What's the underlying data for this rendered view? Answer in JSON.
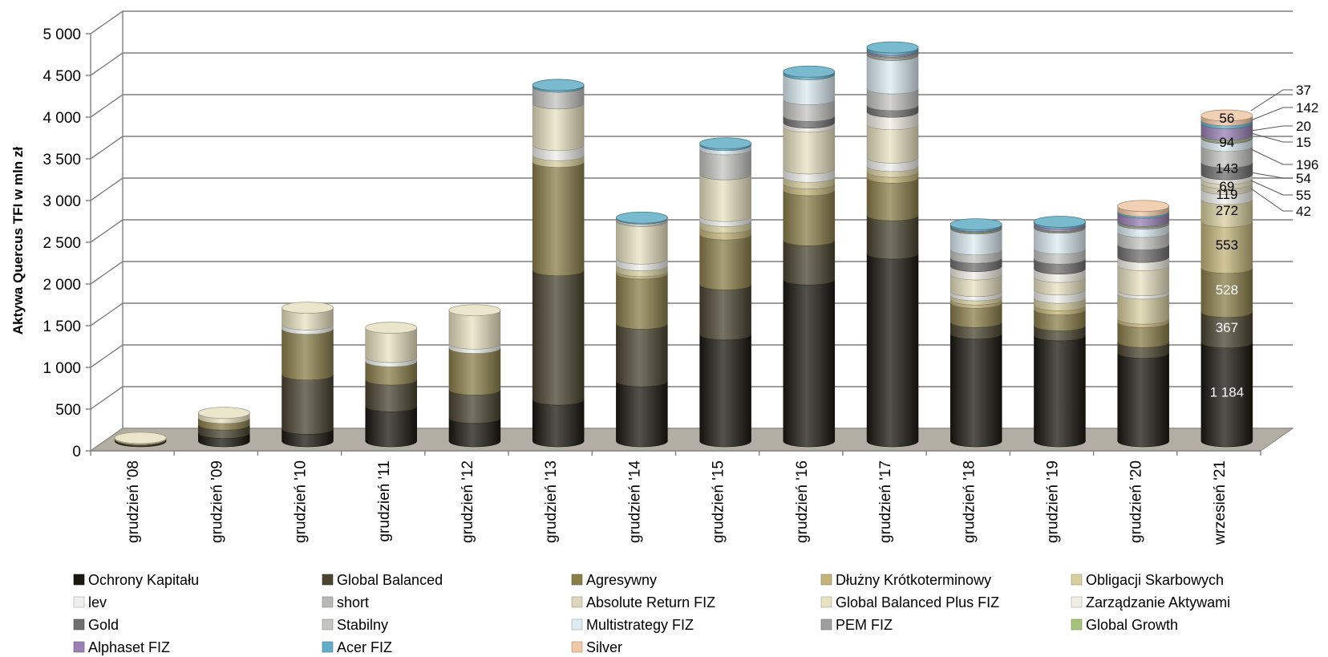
{
  "chart_data": {
    "type": "bar",
    "stacked": true,
    "three_d": true,
    "title": "",
    "xlabel": "",
    "ylabel": "Aktywa Quercus TFI w mln zł",
    "ylim": [
      0,
      5000
    ],
    "yticks": [
      0,
      500,
      1000,
      1500,
      2000,
      2500,
      3000,
      3500,
      4000,
      4500,
      5000
    ],
    "ytick_labels": [
      "0",
      "500",
      "1 000",
      "1 500",
      "2 000",
      "2 500",
      "3 000",
      "3 500",
      "4 000",
      "4 500",
      "5 000"
    ],
    "grid": true,
    "legend_position": "bottom",
    "categories": [
      "grudzień '08",
      "grudzień '09",
      "grudzień '10",
      "grudzień '11",
      "grudzień '12",
      "grudzień '13",
      "grudzień '14",
      "grudzień '15",
      "grudzień '16",
      "grudzień '17",
      "grudzień '18",
      "grudzień '19",
      "grudzień '20",
      "wrzesień '21"
    ],
    "series": [
      {
        "name": "Ochrony Kapitału",
        "color": "#1a1810",
        "values": [
          10,
          100,
          150,
          420,
          280,
          500,
          720,
          1280,
          1940,
          2250,
          1290,
          1270,
          1060,
          1184
        ]
      },
      {
        "name": "Global Balanced",
        "color": "#4a4430",
        "values": [
          10,
          100,
          650,
          320,
          340,
          1550,
          690,
          600,
          470,
          460,
          140,
          120,
          130,
          367
        ]
      },
      {
        "name": "Agresywny",
        "color": "#8a7f4a",
        "values": [
          10,
          80,
          550,
          220,
          500,
          1300,
          600,
          600,
          600,
          450,
          230,
          190,
          240,
          528
        ]
      },
      {
        "name": "Dłużny Krótkoterminowy",
        "color": "#c2b47a",
        "values": [
          0,
          0,
          0,
          0,
          0,
          0,
          30,
          80,
          80,
          70,
          40,
          50,
          40,
          553
        ]
      },
      {
        "name": "Obligacji Skarbowych",
        "color": "#d8cfa0",
        "values": [
          0,
          0,
          0,
          0,
          0,
          80,
          70,
          80,
          80,
          70,
          50,
          90,
          300,
          272
        ]
      },
      {
        "name": "lev",
        "color": "#efefec",
        "values": [
          0,
          0,
          50,
          50,
          50,
          120,
          80,
          60,
          100,
          100,
          50,
          100,
          40,
          119
        ]
      },
      {
        "name": "short",
        "color": "#b8b8b4",
        "values": [
          0,
          0,
          0,
          0,
          0,
          0,
          0,
          0,
          0,
          0,
          0,
          0,
          0,
          0
        ]
      },
      {
        "name": "Absolute Return FIZ",
        "color": "#ddd6bc",
        "values": [
          0,
          0,
          0,
          0,
          0,
          0,
          0,
          0,
          0,
          0,
          0,
          0,
          0,
          69
        ]
      },
      {
        "name": "Global Balanced Plus FIZ",
        "color": "#e8e2c2",
        "values": [
          10,
          60,
          200,
          350,
          400,
          500,
          450,
          500,
          500,
          400,
          200,
          150,
          300,
          54
        ]
      },
      {
        "name": "Zarządzanie Aktywami",
        "color": "#f1efe4",
        "values": [
          0,
          0,
          0,
          0,
          0,
          0,
          0,
          0,
          50,
          150,
          100,
          100,
          100,
          55
        ]
      },
      {
        "name": "Gold",
        "color": "#707070",
        "values": [
          0,
          0,
          0,
          0,
          0,
          0,
          0,
          0,
          80,
          80,
          100,
          120,
          150,
          143
        ]
      },
      {
        "name": "Stabilny",
        "color": "#c4c4c0",
        "values": [
          0,
          0,
          0,
          0,
          0,
          200,
          30,
          300,
          200,
          200,
          100,
          120,
          150,
          196
        ]
      },
      {
        "name": "Multistrategy FIZ",
        "color": "#dcecf2",
        "values": [
          0,
          0,
          0,
          0,
          0,
          0,
          0,
          50,
          300,
          400,
          250,
          250,
          100,
          94
        ]
      },
      {
        "name": "PEM FIZ",
        "color": "#9e9e9e",
        "values": [
          0,
          0,
          0,
          0,
          0,
          0,
          0,
          0,
          0,
          30,
          10,
          10,
          20,
          15
        ]
      },
      {
        "name": "Global Growth",
        "color": "#a4c47a",
        "values": [
          0,
          0,
          0,
          0,
          0,
          0,
          0,
          0,
          0,
          10,
          10,
          10,
          10,
          20
        ]
      },
      {
        "name": "Alphaset FIZ",
        "color": "#9a80b4",
        "values": [
          0,
          0,
          0,
          0,
          0,
          0,
          0,
          0,
          0,
          20,
          10,
          30,
          100,
          142
        ]
      },
      {
        "name": "Acer FIZ",
        "color": "#62aec6",
        "values": [
          0,
          0,
          0,
          0,
          0,
          20,
          10,
          20,
          30,
          30,
          20,
          20,
          20,
          37
        ]
      },
      {
        "name": "Silver",
        "color": "#f0c8a6",
        "values": [
          0,
          0,
          0,
          0,
          0,
          0,
          0,
          0,
          0,
          0,
          0,
          0,
          60,
          56
        ]
      }
    ],
    "annotations_last_bar": {
      "inside": [
        "1 184",
        "367",
        "528",
        "553",
        "272",
        "119",
        "69",
        "143",
        "94",
        "56"
      ],
      "outside": [
        "37",
        "142",
        "20",
        "15",
        "196",
        "54",
        "55",
        "42"
      ]
    }
  }
}
